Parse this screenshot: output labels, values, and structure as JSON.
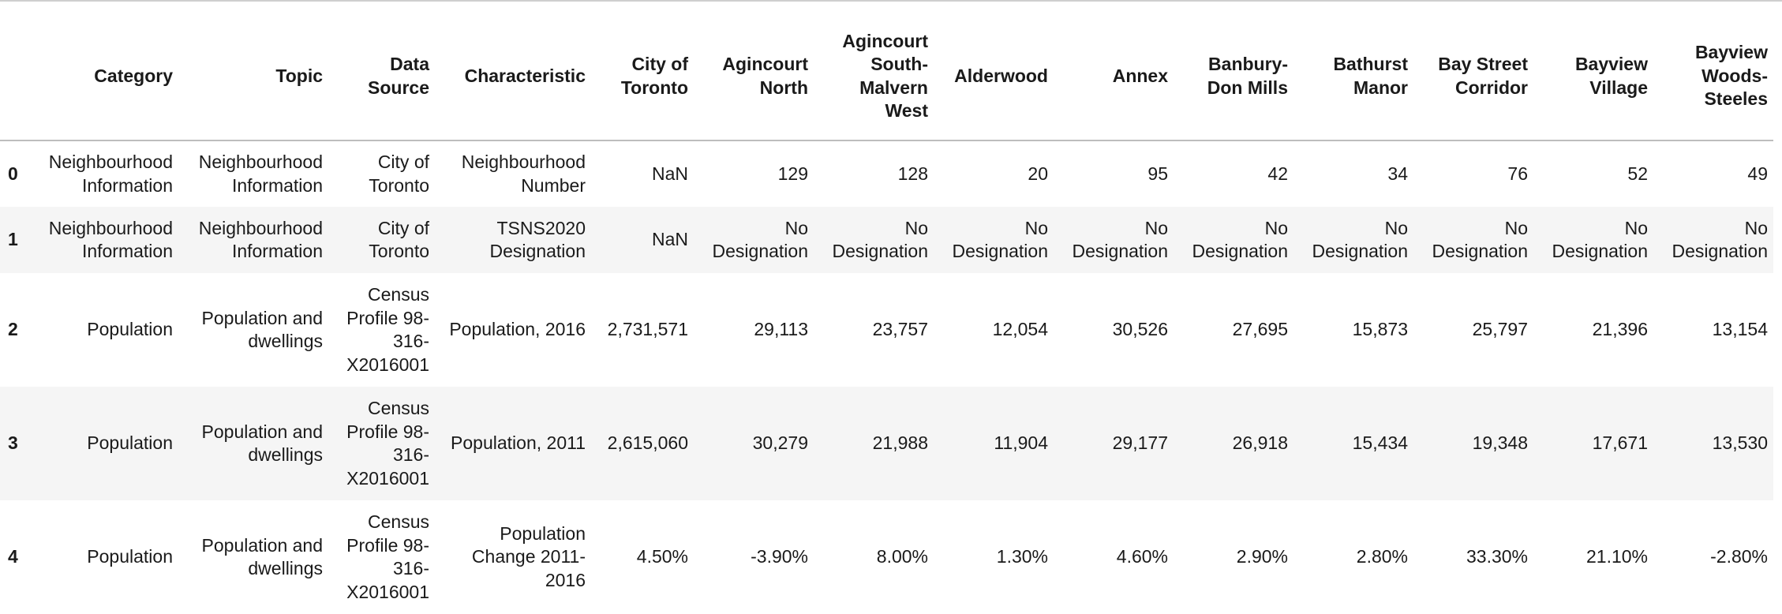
{
  "table": {
    "columns": [
      "",
      "Category",
      "Topic",
      "Data Source",
      "Characteristic",
      "City of Toronto",
      "Agincourt North",
      "Agincourt South-Malvern West",
      "Alderwood",
      "Annex",
      "Banbury-Don Mills",
      "Bathurst Manor",
      "Bay Street Corridor",
      "Bayview Village",
      "Bayview Woods-Steeles"
    ],
    "rows": [
      {
        "index": "0",
        "cells": [
          "Neighbourhood Information",
          "Neighbourhood Information",
          "City of Toronto",
          "Neighbourhood Number",
          "NaN",
          "129",
          "128",
          "20",
          "95",
          "42",
          "34",
          "76",
          "52",
          "49"
        ]
      },
      {
        "index": "1",
        "cells": [
          "Neighbourhood Information",
          "Neighbourhood Information",
          "City of Toronto",
          "TSNS2020 Designation",
          "NaN",
          "No Designation",
          "No Designation",
          "No Designation",
          "No Designation",
          "No Designation",
          "No Designation",
          "No Designation",
          "No Designation",
          "No Designation"
        ]
      },
      {
        "index": "2",
        "cells": [
          "Population",
          "Population and dwellings",
          "Census Profile 98-316-X2016001",
          "Population, 2016",
          "2,731,571",
          "29,113",
          "23,757",
          "12,054",
          "30,526",
          "27,695",
          "15,873",
          "25,797",
          "21,396",
          "13,154"
        ]
      },
      {
        "index": "3",
        "cells": [
          "Population",
          "Population and dwellings",
          "Census Profile 98-316-X2016001",
          "Population, 2011",
          "2,615,060",
          "30,279",
          "21,988",
          "11,904",
          "29,177",
          "26,918",
          "15,434",
          "19,348",
          "17,671",
          "13,530"
        ]
      },
      {
        "index": "4",
        "cells": [
          "Population",
          "Population and dwellings",
          "Census Profile 98-316-X2016001",
          "Population Change 2011-2016",
          "4.50%",
          "-3.90%",
          "8.00%",
          "1.30%",
          "4.60%",
          "2.90%",
          "2.80%",
          "33.30%",
          "21.10%",
          "-2.80%"
        ]
      }
    ]
  }
}
